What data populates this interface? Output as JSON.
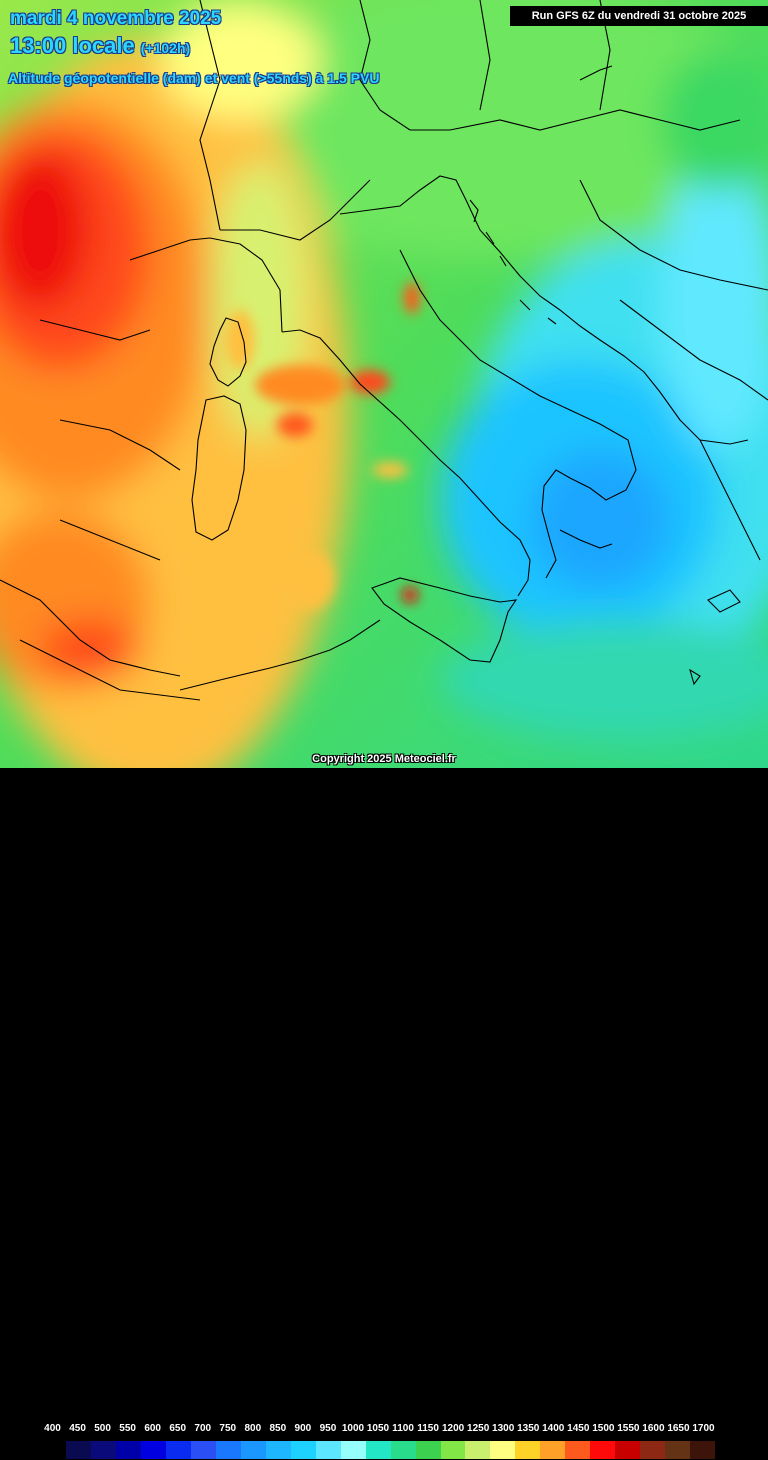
{
  "header": {
    "date": "mardi 4 novembre 2025",
    "time": "13:00 locale",
    "lead": "(+102h)",
    "parameter": "Altitude géopotentielle (dam) et vent (>55nds) à 1.5 PVU",
    "run": "Run GFS 6Z du vendredi 31 octobre 2025"
  },
  "legend": {
    "labels": [
      "400",
      "450",
      "500",
      "550",
      "600",
      "650",
      "700",
      "750",
      "800",
      "850",
      "900",
      "950",
      "1000",
      "1050",
      "1100",
      "1150",
      "1200",
      "1250",
      "1300",
      "1350",
      "1400",
      "1450",
      "1500",
      "1550",
      "1600",
      "1650",
      "1700"
    ],
    "colors": [
      "#000000",
      "#0a0a50",
      "#0a0a7a",
      "#0000a8",
      "#0000e0",
      "#0a2cf0",
      "#2a50f5",
      "#1a78ff",
      "#1a98ff",
      "#1eb6ff",
      "#1ed2ff",
      "#5ce6ff",
      "#96fffc",
      "#23e6c6",
      "#28dc8c",
      "#3cd250",
      "#82e646",
      "#c8f06e",
      "#ffff82",
      "#ffd228",
      "#ffa028",
      "#ff5a1e",
      "#ff0a0a",
      "#c80000",
      "#8c2814",
      "#643214",
      "#3c140a"
    ]
  },
  "copyright": "Copyright 2025 Meteociel.fr"
}
